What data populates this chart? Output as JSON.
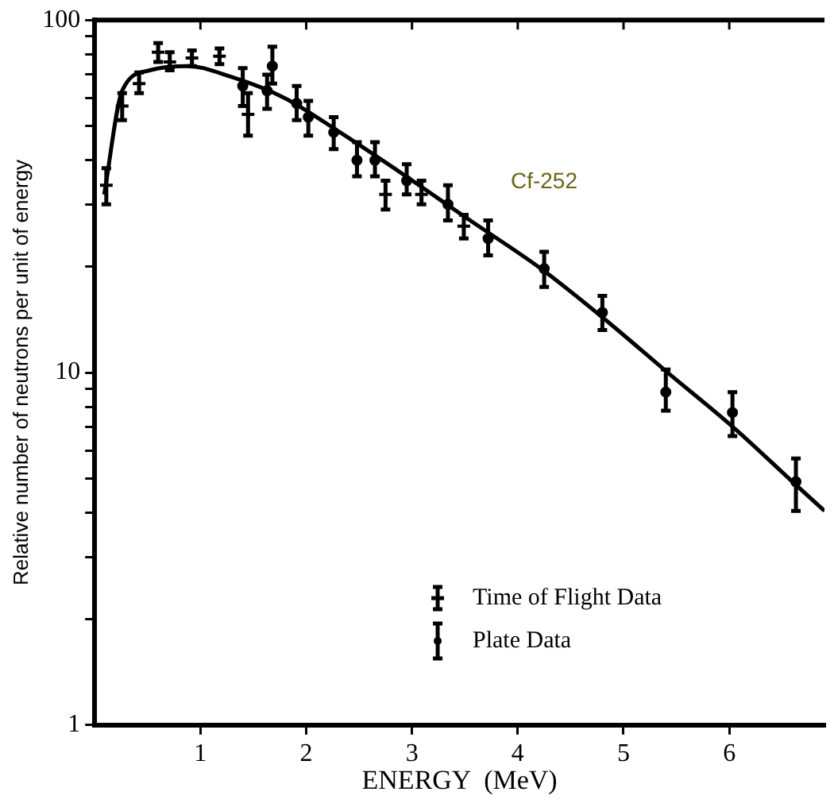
{
  "chart_data": {
    "type": "scatter",
    "xlabel": "ENERGY  (MeV)",
    "ylabel": "Relative number of neutrons per unit of energy",
    "annotations": [
      "Cf-252"
    ],
    "log": "y",
    "xlim": [
      0,
      6.9
    ],
    "ylim": [
      1,
      100
    ],
    "xticks": [
      1,
      2,
      3,
      4,
      5,
      6
    ],
    "yticks": [
      1,
      {
        "value": 2,
        "label": null
      },
      {
        "value": 3,
        "label": null
      },
      {
        "value": 4,
        "label": null
      },
      {
        "value": 5,
        "label": null
      },
      {
        "value": 6,
        "label": null
      },
      {
        "value": 7,
        "label": null
      },
      {
        "value": 8,
        "label": null
      },
      {
        "value": 9,
        "label": null
      },
      10,
      {
        "value": 20,
        "label": null
      },
      {
        "value": 30,
        "label": null
      },
      {
        "value": 40,
        "label": null
      },
      {
        "value": 50,
        "label": null
      },
      {
        "value": 60,
        "label": null
      },
      {
        "value": 70,
        "label": null
      },
      {
        "value": 80,
        "label": null
      },
      {
        "value": 90,
        "label": null
      },
      100
    ],
    "grid": false,
    "legend": "bottom",
    "series": [
      {
        "name": "Time of Flight Data",
        "color": "#000000",
        "marker": "cross",
        "x": [
          0.11,
          0.26,
          0.42,
          0.6,
          0.71,
          0.92,
          1.18,
          1.45,
          2.75,
          3.09,
          3.49
        ],
        "values": [
          34,
          57,
          66,
          81,
          76,
          78,
          79,
          54,
          32,
          32,
          26
        ],
        "errors": [
          [
            30,
            38
          ],
          [
            52,
            62
          ],
          [
            62,
            71
          ],
          [
            76,
            86
          ],
          [
            72,
            81
          ],
          [
            74,
            82
          ],
          [
            75,
            83
          ],
          [
            47,
            62
          ],
          [
            29,
            35
          ],
          [
            30,
            35
          ],
          [
            24,
            28
          ]
        ]
      },
      {
        "name": "Plate Data",
        "color": "#000000",
        "marker": "circle",
        "x": [
          1.4,
          1.63,
          1.68,
          1.91,
          2.02,
          2.26,
          2.48,
          2.65,
          2.95,
          3.34,
          3.72,
          4.25,
          4.8,
          5.4,
          6.03,
          6.63
        ],
        "values": [
          65,
          63,
          74,
          58,
          53,
          48,
          40,
          40,
          35,
          30,
          24,
          19.7,
          14.8,
          8.8,
          7.7,
          4.9
        ],
        "errors": [
          [
            57,
            73
          ],
          [
            56,
            70
          ],
          [
            66,
            84
          ],
          [
            52,
            65
          ],
          [
            47,
            59
          ],
          [
            43,
            53
          ],
          [
            36,
            45
          ],
          [
            36,
            45
          ],
          [
            32,
            39
          ],
          [
            27,
            34
          ],
          [
            21.5,
            27
          ],
          [
            17.5,
            22
          ],
          [
            13.2,
            16.5
          ],
          [
            7.8,
            10.2
          ],
          [
            6.6,
            8.8
          ],
          [
            4.05,
            5.7
          ]
        ]
      },
      {
        "type": "line",
        "color": "#000000",
        "marker": "none",
        "x": [
          0.09,
          0.26,
          0.52,
          0.88,
          1.29,
          1.8,
          2.32,
          2.83,
          3.55,
          4.22,
          4.83,
          5.4,
          6.06,
          6.63,
          6.9
        ],
        "values": [
          32,
          63,
          72,
          74,
          69,
          60,
          48,
          38,
          27,
          19.7,
          14.1,
          10.1,
          6.9,
          4.8,
          4.05
        ]
      }
    ]
  }
}
